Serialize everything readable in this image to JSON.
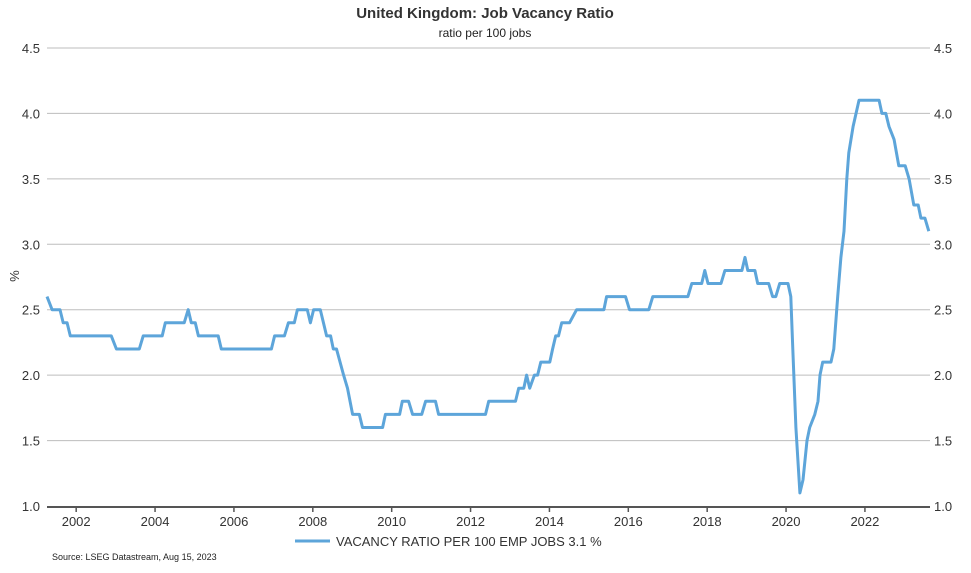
{
  "chart_data": {
    "type": "line",
    "title": "United Kingdom: Job Vacancy Ratio",
    "subtitle": "ratio per 100 jobs",
    "ylabel": "%",
    "xlabel": "",
    "ylim": [
      1.0,
      4.5
    ],
    "xlim": [
      2001.26,
      2023.65
    ],
    "y_ticks": [
      "1.0",
      "1.5",
      "2.0",
      "2.5",
      "3.0",
      "3.5",
      "4.0",
      "4.5"
    ],
    "x_ticks": [
      "2002",
      "2004",
      "2006",
      "2008",
      "2010",
      "2012",
      "2014",
      "2016",
      "2018",
      "2020",
      "2022"
    ],
    "grid": true,
    "legend_position": "bottom",
    "source": "Source: LSEG Datastream, Aug 15, 2023",
    "color": "#5DA5DA",
    "series": [
      {
        "name": "VACANCY RATIO PER 100 EMP JOBS 3.1 %",
        "points": [
          [
            2001.26,
            2.6
          ],
          [
            2001.39,
            2.5
          ],
          [
            2001.59,
            2.5
          ],
          [
            2001.67,
            2.4
          ],
          [
            2001.77,
            2.4
          ],
          [
            2001.85,
            2.3
          ],
          [
            2002.89,
            2.3
          ],
          [
            2003.02,
            2.2
          ],
          [
            2003.6,
            2.2
          ],
          [
            2003.7,
            2.3
          ],
          [
            2004.18,
            2.3
          ],
          [
            2004.26,
            2.4
          ],
          [
            2004.74,
            2.4
          ],
          [
            2004.84,
            2.5
          ],
          [
            2004.92,
            2.4
          ],
          [
            2005.02,
            2.4
          ],
          [
            2005.1,
            2.3
          ],
          [
            2005.6,
            2.3
          ],
          [
            2005.68,
            2.2
          ],
          [
            2006.95,
            2.2
          ],
          [
            2007.03,
            2.3
          ],
          [
            2007.28,
            2.3
          ],
          [
            2007.38,
            2.4
          ],
          [
            2007.53,
            2.4
          ],
          [
            2007.61,
            2.5
          ],
          [
            2007.86,
            2.5
          ],
          [
            2007.94,
            2.4
          ],
          [
            2008.02,
            2.5
          ],
          [
            2008.19,
            2.5
          ],
          [
            2008.35,
            2.3
          ],
          [
            2008.45,
            2.3
          ],
          [
            2008.52,
            2.2
          ],
          [
            2008.6,
            2.2
          ],
          [
            2008.78,
            2.0
          ],
          [
            2008.88,
            1.9
          ],
          [
            2009.01,
            1.7
          ],
          [
            2009.18,
            1.7
          ],
          [
            2009.26,
            1.6
          ],
          [
            2009.77,
            1.6
          ],
          [
            2009.84,
            1.7
          ],
          [
            2010.2,
            1.7
          ],
          [
            2010.27,
            1.8
          ],
          [
            2010.43,
            1.8
          ],
          [
            2010.53,
            1.7
          ],
          [
            2010.76,
            1.7
          ],
          [
            2010.86,
            1.8
          ],
          [
            2011.11,
            1.8
          ],
          [
            2011.19,
            1.7
          ],
          [
            2012.38,
            1.7
          ],
          [
            2012.46,
            1.8
          ],
          [
            2013.14,
            1.8
          ],
          [
            2013.22,
            1.9
          ],
          [
            2013.35,
            1.9
          ],
          [
            2013.42,
            2.0
          ],
          [
            2013.5,
            1.9
          ],
          [
            2013.62,
            2.0
          ],
          [
            2013.7,
            2.0
          ],
          [
            2013.78,
            2.1
          ],
          [
            2014.01,
            2.1
          ],
          [
            2014.08,
            2.2
          ],
          [
            2014.16,
            2.3
          ],
          [
            2014.23,
            2.3
          ],
          [
            2014.31,
            2.4
          ],
          [
            2014.51,
            2.4
          ],
          [
            2014.69,
            2.5
          ],
          [
            2015.38,
            2.5
          ],
          [
            2015.45,
            2.6
          ],
          [
            2015.93,
            2.6
          ],
          [
            2016.03,
            2.5
          ],
          [
            2016.52,
            2.5
          ],
          [
            2016.62,
            2.6
          ],
          [
            2017.51,
            2.6
          ],
          [
            2017.61,
            2.7
          ],
          [
            2017.86,
            2.7
          ],
          [
            2017.94,
            2.8
          ],
          [
            2018.02,
            2.7
          ],
          [
            2018.35,
            2.7
          ],
          [
            2018.45,
            2.8
          ],
          [
            2018.88,
            2.8
          ],
          [
            2018.96,
            2.9
          ],
          [
            2019.03,
            2.8
          ],
          [
            2019.21,
            2.8
          ],
          [
            2019.28,
            2.7
          ],
          [
            2019.56,
            2.7
          ],
          [
            2019.66,
            2.6
          ],
          [
            2019.74,
            2.6
          ],
          [
            2019.84,
            2.7
          ],
          [
            2020.05,
            2.7
          ],
          [
            2020.12,
            2.6
          ],
          [
            2020.17,
            2.2
          ],
          [
            2020.25,
            1.6
          ],
          [
            2020.35,
            1.1
          ],
          [
            2020.43,
            1.2
          ],
          [
            2020.53,
            1.5
          ],
          [
            2020.6,
            1.6
          ],
          [
            2020.73,
            1.7
          ],
          [
            2020.81,
            1.8
          ],
          [
            2020.86,
            2.0
          ],
          [
            2020.93,
            2.1
          ],
          [
            2021.14,
            2.1
          ],
          [
            2021.21,
            2.2
          ],
          [
            2021.31,
            2.6
          ],
          [
            2021.39,
            2.9
          ],
          [
            2021.47,
            3.1
          ],
          [
            2021.54,
            3.5
          ],
          [
            2021.59,
            3.7
          ],
          [
            2021.7,
            3.9
          ],
          [
            2021.85,
            4.1
          ],
          [
            2022.36,
            4.1
          ],
          [
            2022.43,
            4.0
          ],
          [
            2022.53,
            4.0
          ],
          [
            2022.61,
            3.9
          ],
          [
            2022.74,
            3.8
          ],
          [
            2022.86,
            3.6
          ],
          [
            2023.02,
            3.6
          ],
          [
            2023.12,
            3.5
          ],
          [
            2023.24,
            3.3
          ],
          [
            2023.35,
            3.3
          ],
          [
            2023.42,
            3.2
          ],
          [
            2023.52,
            3.2
          ],
          [
            2023.62,
            3.1
          ]
        ]
      }
    ]
  }
}
